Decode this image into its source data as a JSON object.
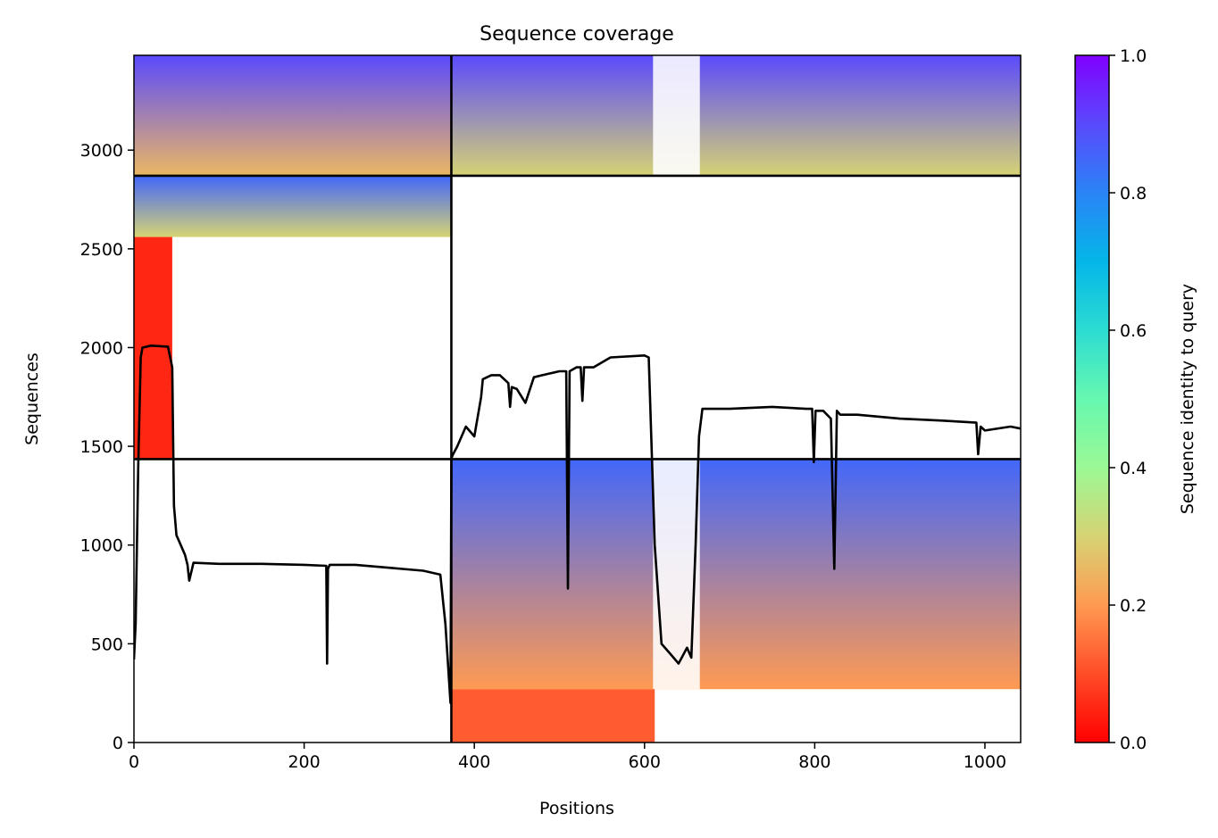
{
  "chart_data": {
    "type": "heatmap",
    "title": "Sequence coverage",
    "xlabel": "Positions",
    "ylabel": "Sequences",
    "xlim": [
      0,
      1042
    ],
    "ylim": [
      0,
      3480
    ],
    "xticks": [
      0,
      200,
      400,
      600,
      800,
      1000
    ],
    "yticks": [
      0,
      500,
      1000,
      1500,
      2000,
      2500,
      3000
    ],
    "colorbar": {
      "label": "Sequence identity to query",
      "range": [
        0.0,
        1.0
      ],
      "ticks": [
        "0.0",
        "0.2",
        "0.4",
        "0.6",
        "0.8",
        "1.0"
      ],
      "colormap": "rainbow_r"
    },
    "domain_boundaries": {
      "x": 373,
      "y": [
        1435,
        2870
      ]
    },
    "blocks": [
      {
        "x": [
          0,
          373
        ],
        "y": [
          2870,
          3480
        ],
        "identity_top": 0.9,
        "identity_bottom": 0.25
      },
      {
        "x": [
          373,
          1042
        ],
        "y": [
          2870,
          3480
        ],
        "identity_top": 0.9,
        "identity_bottom": 0.3,
        "gap_x": [
          610,
          665
        ]
      },
      {
        "x": [
          0,
          373
        ],
        "y": [
          2560,
          2870
        ],
        "identity_top": 0.85,
        "identity_bottom": 0.3
      },
      {
        "x": [
          0,
          45
        ],
        "y": [
          1435,
          2560
        ],
        "identity_top": 0.05,
        "identity_bottom": 0.05
      },
      {
        "x": [
          373,
          1042
        ],
        "y": [
          270,
          1435
        ],
        "identity_top": 0.85,
        "identity_bottom": 0.2,
        "gap_x": [
          610,
          665
        ]
      },
      {
        "x": [
          373,
          612
        ],
        "y": [
          0,
          270
        ],
        "identity_top": 0.12,
        "identity_bottom": 0.12
      }
    ],
    "coverage_line": {
      "x": [
        0,
        2,
        5,
        8,
        10,
        20,
        40,
        45,
        47,
        50,
        55,
        60,
        63,
        65,
        70,
        100,
        150,
        200,
        226,
        227,
        228,
        230,
        260,
        300,
        340,
        360,
        366,
        372,
        373,
        375,
        380,
        390,
        400,
        408,
        410,
        420,
        430,
        440,
        442,
        444,
        450,
        460,
        470,
        480,
        500,
        508,
        510,
        512,
        520,
        525,
        527,
        529,
        540,
        560,
        600,
        605,
        612,
        620,
        630,
        640,
        650,
        655,
        660,
        664,
        668,
        700,
        750,
        790,
        797,
        799,
        801,
        810,
        819,
        823,
        826,
        830,
        850,
        900,
        950,
        990,
        992,
        995,
        1000,
        1030,
        1042
      ],
      "y": [
        420,
        600,
        1400,
        1950,
        2000,
        2010,
        2005,
        1900,
        1200,
        1050,
        1000,
        950,
        900,
        820,
        910,
        905,
        905,
        900,
        895,
        400,
        880,
        900,
        900,
        885,
        870,
        850,
        600,
        200,
        1440,
        1460,
        1500,
        1600,
        1550,
        1750,
        1840,
        1860,
        1860,
        1820,
        1700,
        1800,
        1790,
        1720,
        1850,
        1860,
        1880,
        1880,
        780,
        1880,
        1900,
        1900,
        1730,
        1900,
        1900,
        1950,
        1960,
        1950,
        1000,
        500,
        450,
        400,
        480,
        430,
        1000,
        1550,
        1690,
        1690,
        1700,
        1690,
        1690,
        1420,
        1680,
        1680,
        1640,
        880,
        1680,
        1660,
        1660,
        1640,
        1630,
        1620,
        1460,
        1600,
        1580,
        1600,
        1590
      ]
    }
  }
}
